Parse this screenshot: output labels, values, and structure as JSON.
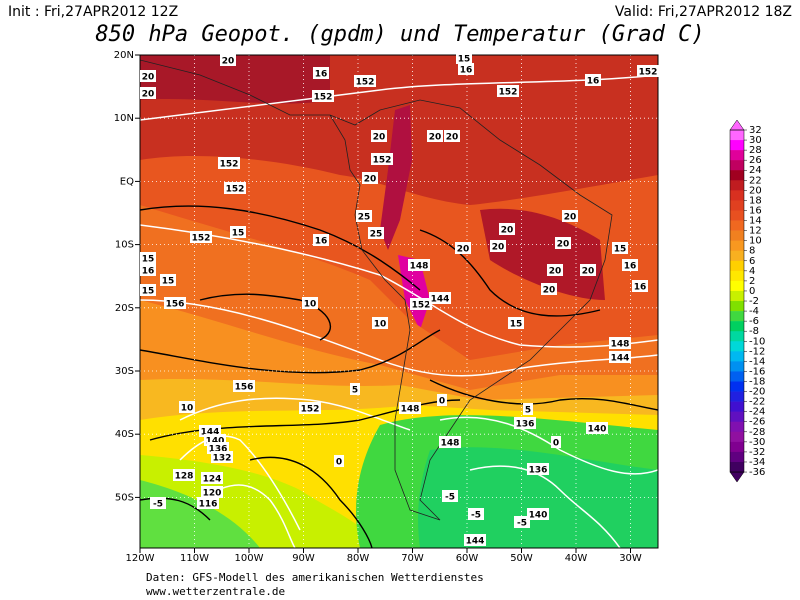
{
  "header": {
    "init": "Init : Fri,27APR2012 12Z",
    "valid": "Valid: Fri,27APR2012 18Z",
    "title": "850 hPa Geopot. (gpdm) und Temperatur (Grad C)"
  },
  "longitude_labels": [
    "120W",
    "110W",
    "100W",
    "90W",
    "80W",
    "70W",
    "60W",
    "50W",
    "40W",
    "30W"
  ],
  "latitude_labels": [
    "20N",
    "10N",
    "EQ",
    "10S",
    "20S",
    "30S",
    "40S",
    "50S"
  ],
  "colorbar": {
    "ticks": [
      32,
      30,
      28,
      26,
      24,
      22,
      20,
      18,
      16,
      14,
      12,
      10,
      8,
      6,
      4,
      2,
      0,
      -2,
      -4,
      -6,
      -8,
      -10,
      -12,
      -14,
      -16,
      -18,
      -20,
      -22,
      -24,
      -26,
      -28,
      -30,
      -32,
      -34,
      -36
    ],
    "colors": [
      "#ff66ff",
      "#ff00ff",
      "#e0009a",
      "#c00060",
      "#a00020",
      "#c01c20",
      "#d83020",
      "#e04020",
      "#e85020",
      "#f06820",
      "#f08020",
      "#f89820",
      "#f8b020",
      "#ffd000",
      "#ffe800",
      "#ffff00",
      "#c8f000",
      "#80e000",
      "#40d840",
      "#00d060",
      "#00d8a0",
      "#00d8d8",
      "#00b8f0",
      "#0090f0",
      "#0060f0",
      "#0030f0",
      "#2020e0",
      "#4010d0",
      "#6010c0",
      "#8010b0",
      "#9010a0",
      "#800090",
      "#600080",
      "#400060"
    ]
  },
  "contour_labels": [
    "20",
    "20",
    "20",
    "16",
    "152",
    "152",
    "15",
    "16",
    "152",
    "16",
    "152",
    "20",
    "20",
    "20",
    "152",
    "152",
    "152",
    "20",
    "25",
    "15",
    "152",
    "16",
    "25",
    "20",
    "20",
    "20",
    "20",
    "20",
    "20",
    "20",
    "20",
    "15",
    "16",
    "16",
    "15",
    "16",
    "15",
    "15",
    "156",
    "10",
    "10",
    "148",
    "152",
    "144",
    "15",
    "148",
    "144",
    "156",
    "152",
    "10",
    "5",
    "148",
    "0",
    "148",
    "136",
    "140",
    "144",
    "140",
    "136",
    "132",
    "128",
    "124",
    "120",
    "116",
    "-5",
    "0",
    "136",
    "-5",
    "-5",
    "140",
    "-5",
    "144",
    "0",
    "5"
  ],
  "footer": {
    "source": "Daten: GFS-Modell des amerikanischen Wetterdienstes",
    "website": "www.wetterzentrale.de"
  }
}
